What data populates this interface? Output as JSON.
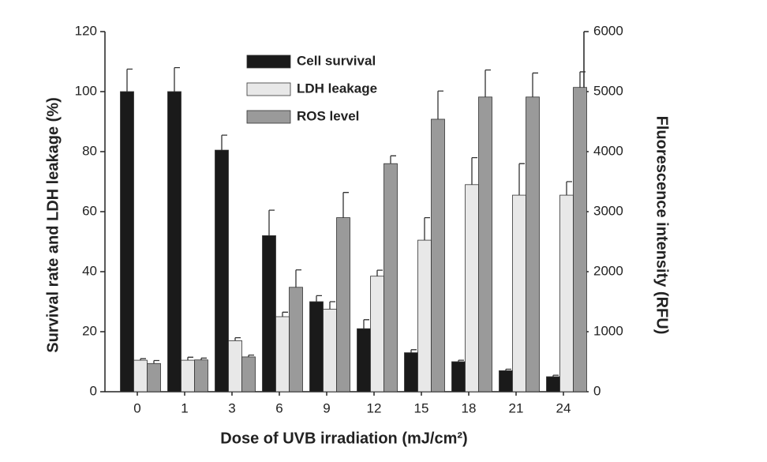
{
  "chart_data": {
    "type": "bar",
    "x_label": "Dose of UVB irradiation (mJ/cm²)",
    "y_label": "Survival rate and LDH leakage (%)",
    "y2_label": "Fluorescence intensity (RFU)",
    "categories": [
      "0",
      "1",
      "3",
      "6",
      "9",
      "12",
      "15",
      "18",
      "21",
      "24"
    ],
    "series": [
      {
        "name": "Cell survival",
        "color": "#1a1a1a",
        "axis": "y",
        "values": [
          100,
          100,
          80.5,
          52,
          30,
          21,
          13,
          10,
          7,
          5
        ],
        "errors": [
          7.5,
          8,
          5,
          8.5,
          2,
          3,
          1,
          0.5,
          0.5,
          0.5
        ]
      },
      {
        "name": "LDH leakage",
        "color": "#e8e8e8",
        "axis": "y",
        "values": [
          10.5,
          10.5,
          17,
          25,
          27.5,
          38.5,
          50.5,
          69,
          65.5,
          65.5
        ],
        "errors": [
          0.5,
          1,
          1,
          1.5,
          2.5,
          2,
          7.5,
          9,
          10.5,
          4.5
        ]
      },
      {
        "name": "ROS level",
        "color": "#9a9a9a",
        "axis": "y2",
        "values": [
          470,
          530,
          580,
          1740,
          2900,
          3800,
          4540,
          4910,
          4910,
          5070
        ],
        "errors": [
          50,
          30,
          30,
          290,
          420,
          130,
          470,
          450,
          400,
          260
        ]
      }
    ],
    "ylim": [
      0,
      120
    ],
    "yticks": [
      0,
      20,
      40,
      60,
      80,
      100,
      120
    ],
    "y2lim": [
      0,
      6000
    ],
    "y2ticks": [
      0,
      1000,
      2000,
      3000,
      4000,
      5000,
      6000
    ],
    "legend": "top"
  }
}
